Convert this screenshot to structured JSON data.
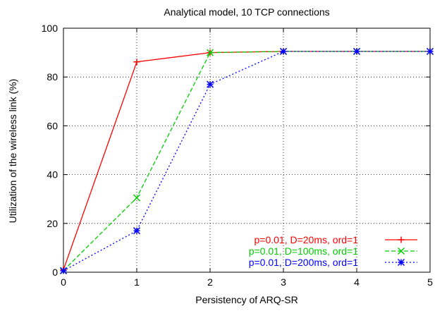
{
  "chart_data": {
    "type": "line",
    "title": "Analytical model, 10 TCP connections",
    "xlabel": "Persistency of ARQ-SR",
    "ylabel": "Utilization of the wireless link (%)",
    "xlim": [
      0,
      5
    ],
    "ylim": [
      0,
      100
    ],
    "xticks": [
      0,
      1,
      2,
      3,
      4,
      5
    ],
    "yticks": [
      0,
      20,
      40,
      60,
      80,
      100
    ],
    "grid": true,
    "legend_position": "bottom-right",
    "x": [
      0,
      1,
      2,
      3,
      4,
      5
    ],
    "series": [
      {
        "name": "p=0.01, D=20ms, ord=1",
        "color": "#ff0000",
        "dash": "solid",
        "marker": "plus",
        "values": [
          1.0,
          86.2,
          90.0,
          90.5,
          90.5,
          90.5
        ]
      },
      {
        "name": "p=0.01, D=100ms, ord=1",
        "color": "#00cc00",
        "dash": "dashed",
        "marker": "cross",
        "values": [
          0.7,
          30.5,
          90.0,
          90.5,
          90.5,
          90.5
        ]
      },
      {
        "name": "p=0.01, D=200ms, ord=1",
        "color": "#0000ff",
        "dash": "dotted",
        "marker": "asterisk",
        "values": [
          0.6,
          17.0,
          77.0,
          90.5,
          90.5,
          90.5
        ]
      }
    ]
  }
}
